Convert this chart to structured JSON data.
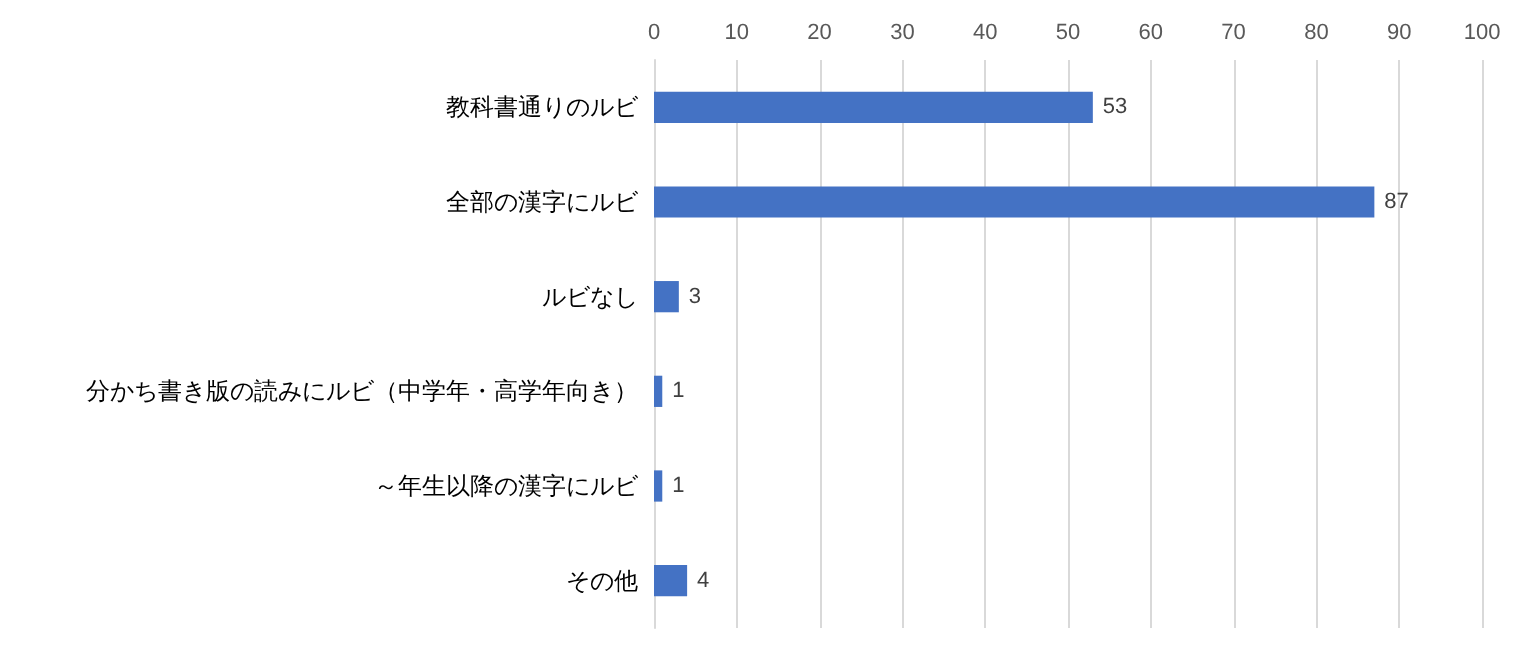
{
  "chart_data": {
    "type": "bar",
    "orientation": "horizontal",
    "categories": [
      "教科書通りのルビ",
      "全部の漢字にルビ",
      "ルビなし",
      "分かち書き版の読みにルビ（中学年・高学年向き）",
      "～年生以降の漢字にルビ",
      "その他"
    ],
    "values": [
      53,
      87,
      3,
      1,
      1,
      4
    ],
    "color": "#4472c4",
    "xlim": [
      0,
      100
    ],
    "xticks": [
      0,
      10,
      20,
      30,
      40,
      50,
      60,
      70,
      80,
      90,
      100
    ],
    "grid": "x",
    "data_labels": true
  }
}
